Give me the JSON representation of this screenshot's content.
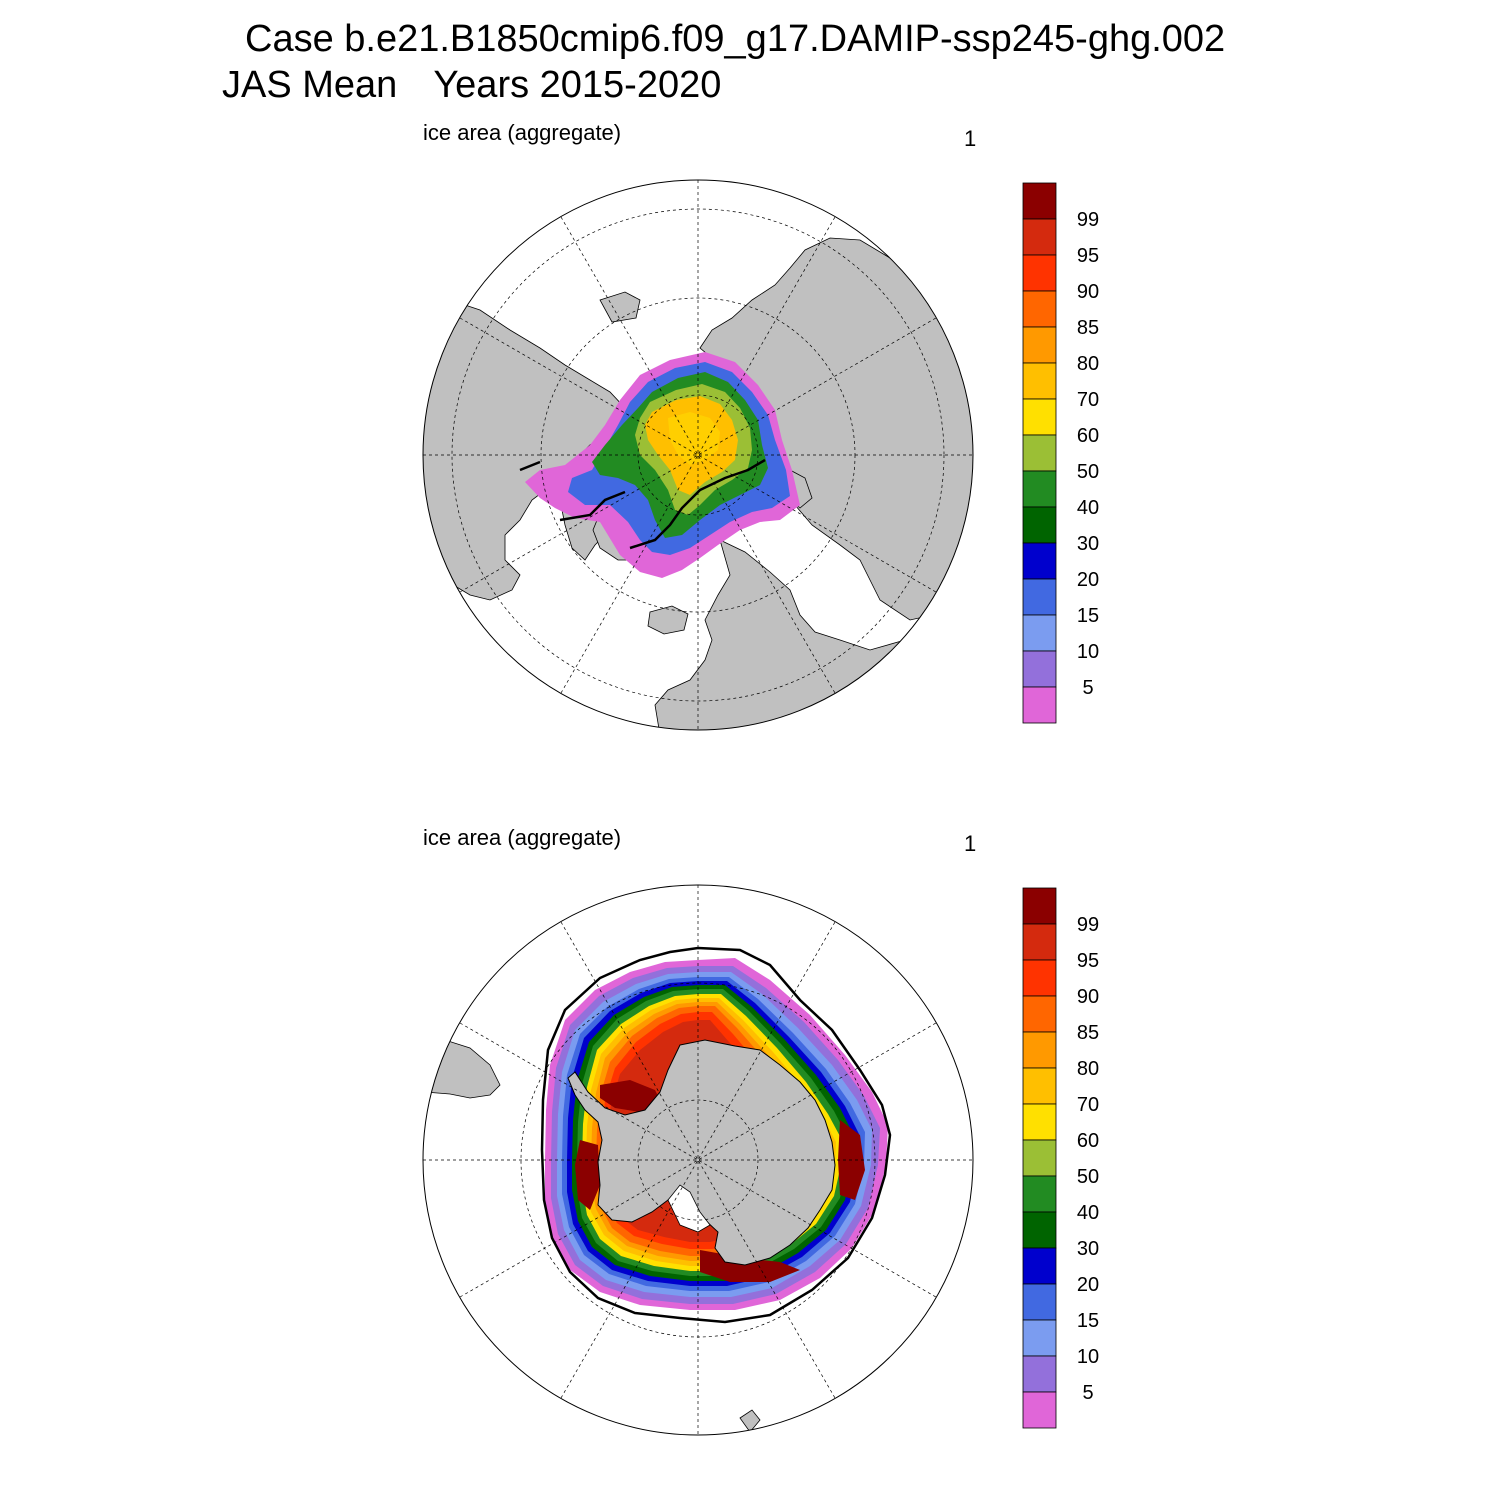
{
  "header": {
    "case_title": "Case b.e21.B1850cmip6.f09_g17.DAMIP-ssp245-ghg.002",
    "season": "JAS Mean",
    "years": "Years 2015-2020"
  },
  "panels": [
    {
      "id": "north",
      "hemisphere": "Arctic (north polar stereographic)",
      "label": "ice area  (aggregate)",
      "panel_number": "1"
    },
    {
      "id": "south",
      "hemisphere": "Antarctic (south polar stereographic)",
      "label": "ice area  (aggregate)",
      "panel_number": "1"
    }
  ],
  "colorbar": {
    "units": "percent",
    "tick_labels": [
      "99",
      "95",
      "90",
      "85",
      "80",
      "70",
      "60",
      "50",
      "40",
      "30",
      "20",
      "15",
      "10",
      "5"
    ],
    "colors_top_to_bottom": [
      "#8b0000",
      "#d42a0e",
      "#ff3300",
      "#ff6600",
      "#ff9900",
      "#ffbf00",
      "#ffe000",
      "#9bbf35",
      "#228b22",
      "#006400",
      "#0000cd",
      "#4169e1",
      "#7b9cf0",
      "#9370db",
      "#e066d8"
    ]
  },
  "colors": {
    "land": "#c0c0c0",
    "ocean": "#ffffff",
    "grid_line": "#000000",
    "observed_edge_contour": "#000000"
  }
}
